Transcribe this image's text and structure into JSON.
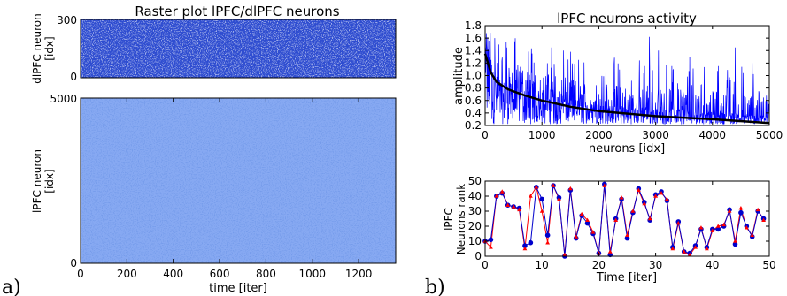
{
  "panel_labels": [
    "a)",
    "b)"
  ],
  "chart_data": [
    {
      "type": "heatmap",
      "title": "Raster plot lPFC/dlPFC neurons",
      "ylabel": "dlPFC neuron\n[idx]",
      "ylim": [
        0,
        300
      ],
      "yticks": [
        "0",
        "300"
      ],
      "background_color": "#2f4dd0"
    },
    {
      "type": "heatmap",
      "xlabel": "time [iter]",
      "ylabel": "lPFC neuron\n[idx]",
      "xlim": [
        0,
        1360
      ],
      "ylim": [
        0,
        5000
      ],
      "xticks": [
        "0",
        "200",
        "400",
        "600",
        "800",
        "1000",
        "1200"
      ],
      "yticks": [
        "0",
        "5000"
      ],
      "background_color": "#87a9f2"
    },
    {
      "type": "line",
      "title": "lPFC neurons activity",
      "xlabel": "neurons [idx]",
      "ylabel": "amplitude",
      "xlim": [
        0,
        5000
      ],
      "ylim": [
        0.2,
        1.8
      ],
      "xticks": [
        "0",
        "1000",
        "2000",
        "3000",
        "4000",
        "5000"
      ],
      "yticks": [
        "0.2",
        "0.4",
        "0.6",
        "0.8",
        "1.0",
        "1.2",
        "1.4",
        "1.6",
        "1.8"
      ],
      "series": [
        {
          "color": "#0000ff",
          "style": "noisy-activity"
        },
        {
          "color": "#000000",
          "style": "decay",
          "x": [
            0,
            50,
            100,
            200,
            400,
            700,
            1000,
            1500,
            2000,
            3000,
            4000,
            5000
          ],
          "y": [
            1.35,
            1.2,
            1.05,
            0.9,
            0.78,
            0.68,
            0.6,
            0.5,
            0.43,
            0.35,
            0.3,
            0.24
          ]
        }
      ],
      "spikes": [
        [
          170,
          1.6
        ],
        [
          380,
          1.45
        ],
        [
          520,
          1.55
        ],
        [
          1170,
          1.45
        ],
        [
          1380,
          1.4
        ],
        [
          2890,
          1.62
        ],
        [
          3050,
          1.4
        ],
        [
          3600,
          1.3
        ],
        [
          4400,
          1.45
        ],
        [
          4700,
          1.2
        ]
      ]
    },
    {
      "type": "line",
      "xlabel": "Time [iter]",
      "ylabel": "lPFC\nNeurons rank",
      "xlim": [
        0,
        50
      ],
      "ylim": [
        0,
        50
      ],
      "xticks": [
        "0",
        "10",
        "20",
        "30",
        "40",
        "50"
      ],
      "yticks": [
        "0",
        "10",
        "20",
        "30",
        "40",
        "50"
      ],
      "x": [
        0,
        1,
        2,
        3,
        4,
        5,
        6,
        7,
        8,
        9,
        10,
        11,
        12,
        13,
        14,
        15,
        16,
        17,
        18,
        19,
        20,
        21,
        22,
        23,
        24,
        25,
        26,
        27,
        28,
        29,
        30,
        31,
        32,
        33,
        34,
        35,
        36,
        37,
        38,
        39,
        40,
        41,
        42,
        43,
        44,
        45,
        46,
        47,
        48,
        49
      ],
      "series": [
        {
          "color": "#0000cc",
          "marker": "circle",
          "values": [
            10,
            11,
            40,
            42,
            34,
            33,
            32,
            7,
            9,
            46,
            38,
            14,
            47,
            39,
            0,
            44,
            12,
            27,
            22,
            15,
            2,
            48,
            1,
            25,
            38,
            12,
            29,
            45,
            36,
            24,
            41,
            43,
            37,
            6,
            23,
            3,
            2,
            7,
            18,
            6,
            18,
            18,
            20,
            31,
            8,
            29,
            20,
            13,
            30,
            25
          ]
        },
        {
          "color": "#ff0000",
          "marker": "triangle",
          "values": [
            10,
            6,
            40,
            43,
            34,
            33,
            31,
            5,
            40,
            46,
            30,
            9,
            47,
            38,
            1,
            45,
            13,
            28,
            24,
            16,
            2,
            47,
            3,
            24,
            39,
            14,
            30,
            44,
            35,
            25,
            40,
            42,
            38,
            5,
            22,
            3,
            1,
            6,
            19,
            5,
            17,
            20,
            21,
            30,
            10,
            32,
            19,
            14,
            31,
            24
          ]
        }
      ]
    }
  ]
}
